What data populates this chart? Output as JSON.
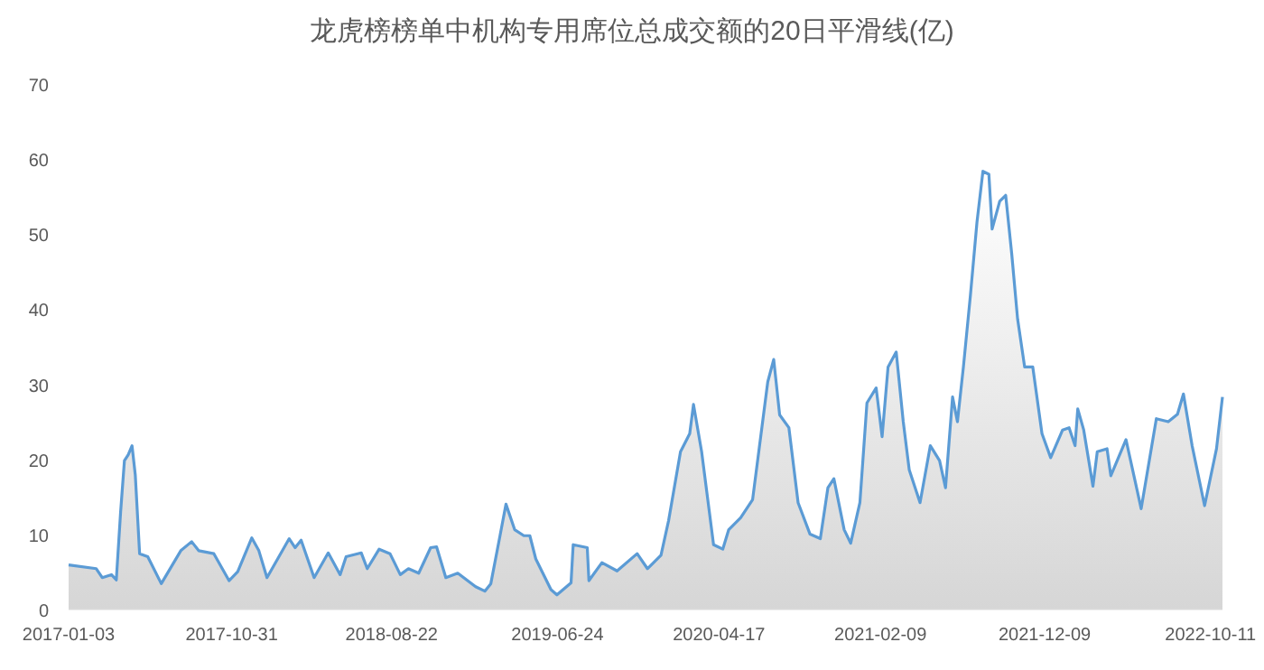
{
  "chart_data": {
    "type": "area",
    "title": "龙虎榜榜单中机构专用席位总成交额的20日平滑线(亿)",
    "x": [
      "2017-01-03",
      "2017-02-23",
      "2017-03-06",
      "2017-03-23",
      "2017-04-01",
      "2017-04-09",
      "2017-04-16",
      "2017-04-23",
      "2017-04-30",
      "2017-05-06",
      "2017-05-14",
      "2017-05-29",
      "2017-06-23",
      "2017-07-29",
      "2017-08-18",
      "2017-08-31",
      "2017-09-28",
      "2017-10-26",
      "2017-11-11",
      "2017-12-07",
      "2017-12-20",
      "2018-01-04",
      "2018-02-14",
      "2018-02-25",
      "2018-03-08",
      "2018-04-01",
      "2018-04-27",
      "2018-05-19",
      "2018-05-30",
      "2018-06-27",
      "2018-07-08",
      "2018-07-30",
      "2018-08-19",
      "2018-09-07",
      "2018-09-22",
      "2018-10-11",
      "2018-11-02",
      "2018-11-13",
      "2018-11-30",
      "2018-12-22",
      "2019-01-24",
      "2019-02-10",
      "2019-02-21",
      "2019-03-10",
      "2019-03-21",
      "2019-04-06",
      "2019-04-23",
      "2019-05-04",
      "2019-05-15",
      "2019-06-12",
      "2019-06-23",
      "2019-07-19",
      "2019-07-23",
      "2019-08-18",
      "2019-08-21",
      "2019-09-14",
      "2019-10-12",
      "2019-11-18",
      "2019-12-07",
      "2020-01-01",
      "2020-01-15",
      "2020-02-06",
      "2020-02-23",
      "2020-03-01",
      "2020-03-16",
      "2020-04-07",
      "2020-04-24",
      "2020-05-05",
      "2020-05-27",
      "2020-06-18",
      "2020-07-16",
      "2020-07-27",
      "2020-08-07",
      "2020-08-24",
      "2020-09-10",
      "2020-10-02",
      "2020-10-21",
      "2020-11-04",
      "2020-11-15",
      "2020-12-04",
      "2020-12-16",
      "2021-01-02",
      "2021-01-15",
      "2021-02-01",
      "2021-02-12",
      "2021-02-23",
      "2021-03-10",
      "2021-03-23",
      "2021-04-03",
      "2021-04-23",
      "2021-05-12",
      "2021-05-29",
      "2021-06-09",
      "2021-06-22",
      "2021-07-01",
      "2021-07-12",
      "2021-07-25",
      "2021-08-06",
      "2021-08-17",
      "2021-08-28",
      "2021-09-03",
      "2021-09-17",
      "2021-09-28",
      "2021-10-09",
      "2021-10-20",
      "2021-11-02",
      "2021-11-17",
      "2021-12-04",
      "2021-12-20",
      "2022-01-11",
      "2022-01-23",
      "2022-02-03",
      "2022-02-08",
      "2022-02-19",
      "2022-03-08",
      "2022-03-16",
      "2022-04-03",
      "2022-04-10",
      "2022-05-08",
      "2022-06-05",
      "2022-07-03",
      "2022-07-25",
      "2022-08-11",
      "2022-08-22",
      "2022-09-07",
      "2022-09-30",
      "2022-10-22",
      "2022-11-02"
    ],
    "series": [
      {
        "color": "#5b9bd5",
        "values": [
          5.9,
          5.4,
          4.2,
          4.6,
          3.9,
          13,
          19.8,
          20.6,
          21.8,
          17.9,
          7.4,
          7,
          3.4,
          7.8,
          9,
          7.8,
          7.4,
          3.8,
          5,
          9.5,
          7.8,
          4.2,
          9.4,
          8.2,
          9.2,
          4.2,
          7.5,
          4.6,
          7,
          7.5,
          5.4,
          8,
          7.4,
          4.6,
          5.4,
          4.8,
          8.2,
          8.3,
          4.2,
          4.8,
          3,
          2.4,
          3.4,
          9.8,
          14,
          10.6,
          9.8,
          9.8,
          6.7,
          2.6,
          1.9,
          3.5,
          8.6,
          8.2,
          3.8,
          6.2,
          5.1,
          7.4,
          5.4,
          7.2,
          11.8,
          21,
          23.4,
          27.3,
          21,
          8.6,
          8,
          10.6,
          12.2,
          14.6,
          30.3,
          33.3,
          25.9,
          24.2,
          14.2,
          10,
          9.4,
          16.2,
          17.4,
          10.6,
          8.8,
          14.2,
          27.5,
          29.5,
          23,
          32.3,
          34.3,
          25,
          18.6,
          14.2,
          21.8,
          19.8,
          16.2,
          28.3,
          25,
          32.3,
          41.9,
          51.6,
          58.4,
          58,
          50.7,
          54.4,
          55.2,
          47.5,
          38.7,
          32.3,
          32.3,
          23.4,
          20.2,
          23.9,
          24.2,
          21.8,
          26.7,
          23.9,
          16.4,
          21,
          21.4,
          17.8,
          22.6,
          13.4,
          25.4,
          25,
          26,
          28.7,
          21.8,
          13.8,
          21.4,
          28.3
        ]
      }
    ],
    "xlim": [
      "2017-01-03",
      "2022-11-02"
    ],
    "xticks": [
      "2017-01-03",
      "2017-10-31",
      "2018-08-22",
      "2019-06-24",
      "2020-04-17",
      "2021-02-09",
      "2021-12-09",
      "2022-10-11"
    ],
    "ylim": [
      0,
      70
    ],
    "yticks": [
      0,
      10,
      20,
      30,
      40,
      50,
      60,
      70
    ],
    "grid": false
  }
}
